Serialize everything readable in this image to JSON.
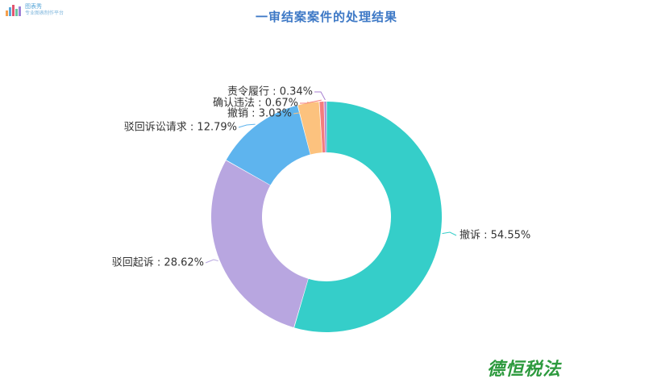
{
  "logo": {
    "name": "图表秀",
    "tagline": "专业图表制作平台"
  },
  "watermark": "德恒税法",
  "chart_data": {
    "type": "pie",
    "subtype": "donut",
    "title": "一审结案案件的处理结果",
    "slices": [
      {
        "name": "撤诉",
        "value": 54.55,
        "label": "撤诉 : 54.55%",
        "color": "#35cec9"
      },
      {
        "name": "驳回起诉",
        "value": 28.62,
        "label": "驳回起诉 : 28.62%",
        "color": "#b8a6e0"
      },
      {
        "name": "驳回诉讼请求",
        "value": 12.79,
        "label": "驳回诉讼请求 : 12.79%",
        "color": "#5eb4ee"
      },
      {
        "name": "撤销",
        "value": 3.03,
        "label": "撤销 : 3.03%",
        "color": "#fcc27e"
      },
      {
        "name": "确认违法",
        "value": 0.67,
        "label": "确认违法 : 0.67%",
        "color": "#f47d7d"
      },
      {
        "name": "责令履行",
        "value": 0.34,
        "label": "责令履行 : 0.34%",
        "color": "#a77fd0"
      }
    ],
    "legend": "none"
  }
}
